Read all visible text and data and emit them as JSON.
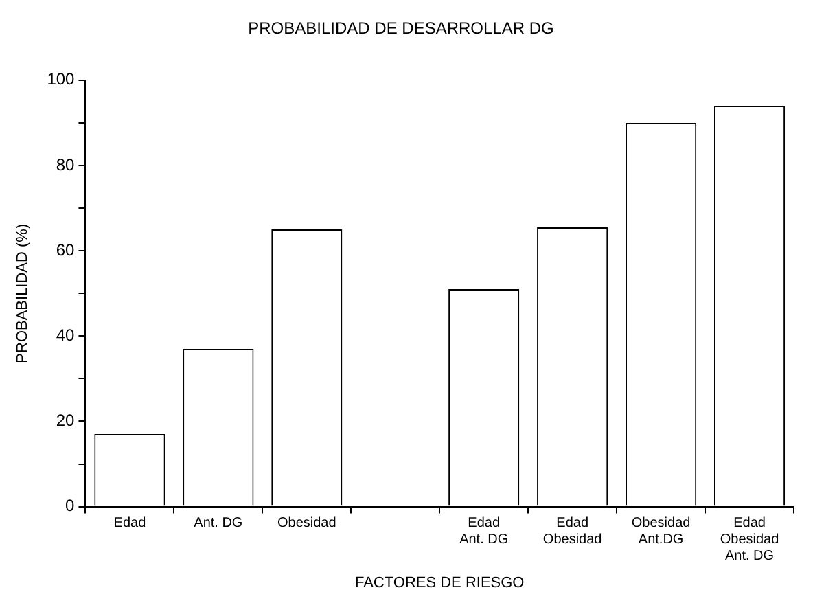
{
  "chart_data": {
    "type": "bar",
    "title": "PROBABILIDAD DE DESARROLLAR DG",
    "xlabel": "FACTORES DE RIESGO",
    "ylabel": "PROBABILIDAD (%)",
    "categories": [
      "Edad",
      "Ant. DG",
      "Obesidad",
      null,
      "Edad\nAnt. DG",
      "Edad\nObesidad",
      "Obesidad\nAnt.DG",
      "Edad\nObesidad\nAnt. DG"
    ],
    "values": [
      17,
      37,
      65,
      null,
      51,
      65.5,
      90,
      94
    ],
    "color": "#ffffff",
    "ylim": [
      0,
      100
    ],
    "yticks": [
      0,
      {
        "value": 10,
        "label": null
      },
      20,
      {
        "value": 30,
        "label": null
      },
      40,
      {
        "value": 50,
        "label": null
      },
      60,
      {
        "value": 70,
        "label": null
      },
      80,
      {
        "value": 90,
        "label": null
      },
      100
    ]
  }
}
